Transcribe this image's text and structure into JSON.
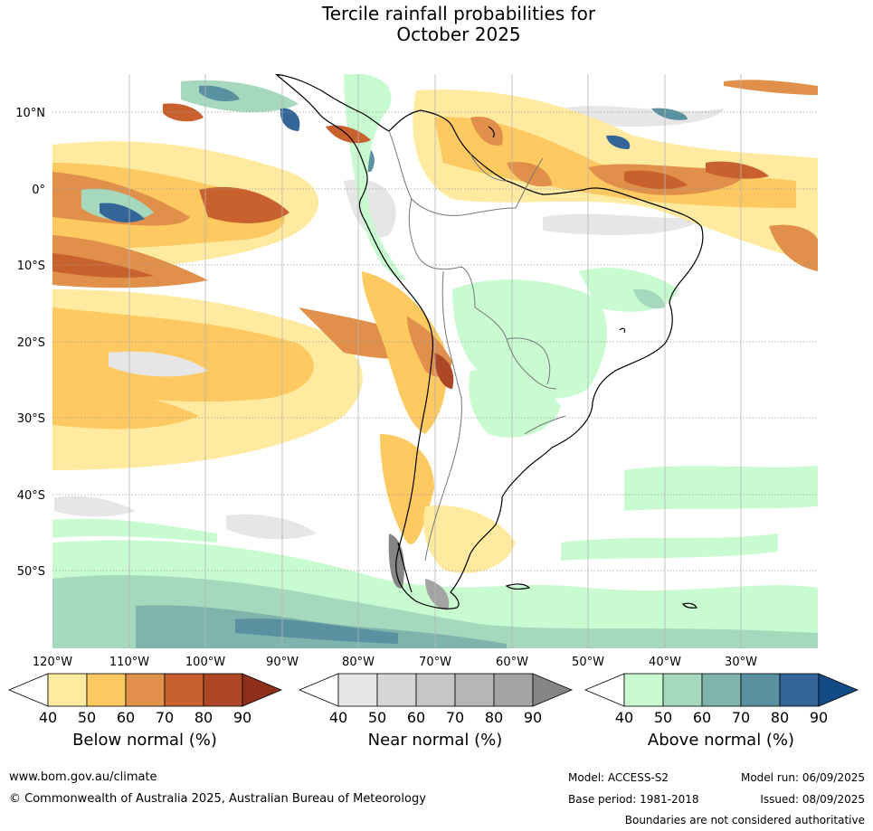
{
  "title_line1": "Tercile rainfall probabilities for",
  "title_line2": "October 2025",
  "lat_labels": [
    "10°N",
    "0°",
    "10°S",
    "20°S",
    "30°S",
    "40°S",
    "50°S"
  ],
  "lon_labels": [
    "120°W",
    "110°W",
    "100°W",
    "90°W",
    "80°W",
    "70°W",
    "60°W",
    "50°W",
    "40°W",
    "30°W"
  ],
  "colorbars": [
    {
      "title": "Below normal (%)",
      "ticks": [
        "40",
        "50",
        "60",
        "70",
        "80",
        "90"
      ],
      "colors": [
        "#ffffff",
        "#ffeaa0",
        "#fdc960",
        "#e0904a",
        "#c9612f",
        "#ad4726",
        "#8e2f1c"
      ]
    },
    {
      "title": "Near normal (%)",
      "ticks": [
        "40",
        "50",
        "60",
        "70",
        "80",
        "90"
      ],
      "colors": [
        "#ffffff",
        "#e6e6e6",
        "#d6d6d6",
        "#c6c6c6",
        "#b6b6b6",
        "#a3a3a3",
        "#858585"
      ]
    },
    {
      "title": "Above normal (%)",
      "ticks": [
        "40",
        "50",
        "60",
        "70",
        "80",
        "90"
      ],
      "colors": [
        "#ffffff",
        "#c8fbd0",
        "#a5d8bc",
        "#7fb4ad",
        "#5a91a0",
        "#336598",
        "#134b87"
      ]
    }
  ],
  "footer": {
    "url": "www.bom.gov.au/climate",
    "copyright": "© Commonwealth of Australia 2025, Australian Bureau of Meteorology",
    "model": "Model: ACCESS-S2",
    "base_period": "Base period: 1981-2018",
    "model_run": "Model run: 06/09/2025",
    "issued": "Issued: 08/09/2025",
    "boundaries": "Boundaries are not considered authoritative"
  }
}
